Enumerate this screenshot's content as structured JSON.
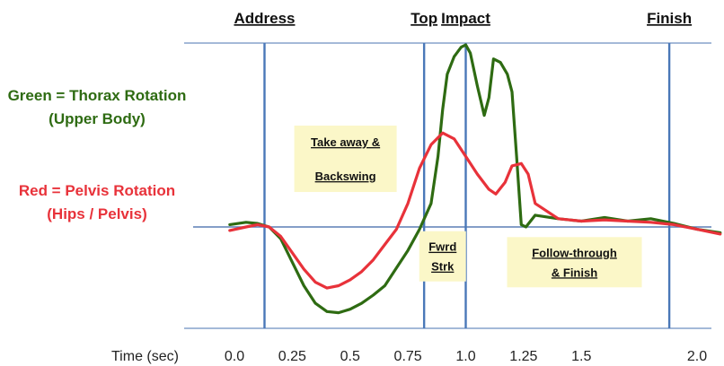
{
  "chart_data": {
    "type": "line",
    "xlabel": "Time (sec)",
    "xlim": [
      -0.1,
      2.1
    ],
    "ylim": [
      -1.0,
      1.6
    ],
    "x_ticks": [
      "0.0",
      "0.25",
      "0.5",
      "0.75",
      "1.0",
      "1.25",
      "1.5",
      "2.0"
    ],
    "x_tick_values": [
      0.0,
      0.25,
      0.5,
      0.75,
      1.0,
      1.25,
      1.5,
      2.0
    ],
    "phases": [
      {
        "label": "Address",
        "x": 0.13
      },
      {
        "label": "Top",
        "x": 0.82
      },
      {
        "label": "Impact",
        "x": 1.0
      },
      {
        "label": "Finish",
        "x": 1.88
      }
    ],
    "annotations": [
      {
        "lines": [
          "Take away &",
          "Backswing"
        ],
        "x": 0.48,
        "y": 0.58
      },
      {
        "lines": [
          "Fwrd",
          "Strk"
        ],
        "x": 0.9,
        "y": -0.25
      },
      {
        "lines": [
          "Follow-through",
          "& Finish"
        ],
        "x": 1.47,
        "y": -0.3
      }
    ],
    "legend": [
      {
        "lines": [
          "Green = Thorax Rotation",
          "(Upper Body)"
        ],
        "color": "#2e6b12"
      },
      {
        "lines": [
          "Red = Pelvis Rotation",
          "(Hips / Pelvis)"
        ],
        "color": "#e8323a"
      }
    ],
    "series": [
      {
        "color": "#2e6b12",
        "x": [
          -0.02,
          0.05,
          0.1,
          0.15,
          0.2,
          0.25,
          0.3,
          0.35,
          0.4,
          0.45,
          0.5,
          0.55,
          0.6,
          0.65,
          0.7,
          0.75,
          0.8,
          0.85,
          0.88,
          0.9,
          0.92,
          0.95,
          0.98,
          1.0,
          1.02,
          1.05,
          1.08,
          1.1,
          1.12,
          1.15,
          1.18,
          1.2,
          1.22,
          1.24,
          1.26,
          1.3,
          1.4,
          1.5,
          1.6,
          1.7,
          1.8,
          1.9,
          2.0,
          2.1
        ],
        "values": [
          0.02,
          0.04,
          0.03,
          0.0,
          -0.1,
          -0.3,
          -0.5,
          -0.65,
          -0.72,
          -0.73,
          -0.7,
          -0.65,
          -0.58,
          -0.5,
          -0.35,
          -0.2,
          -0.02,
          0.2,
          0.6,
          1.0,
          1.3,
          1.45,
          1.53,
          1.55,
          1.48,
          1.2,
          0.95,
          1.1,
          1.43,
          1.4,
          1.3,
          1.15,
          0.6,
          0.02,
          0.0,
          0.1,
          0.07,
          0.05,
          0.08,
          0.05,
          0.07,
          0.03,
          -0.02,
          -0.05
        ]
      },
      {
        "color": "#e8323a",
        "x": [
          -0.02,
          0.05,
          0.1,
          0.15,
          0.2,
          0.25,
          0.3,
          0.35,
          0.4,
          0.45,
          0.5,
          0.55,
          0.6,
          0.65,
          0.7,
          0.75,
          0.8,
          0.85,
          0.9,
          0.95,
          1.0,
          1.05,
          1.1,
          1.13,
          1.17,
          1.2,
          1.24,
          1.27,
          1.3,
          1.4,
          1.5,
          1.6,
          1.7,
          1.8,
          1.9,
          2.0,
          2.1
        ],
        "values": [
          -0.03,
          0.0,
          0.02,
          0.0,
          -0.08,
          -0.22,
          -0.36,
          -0.47,
          -0.52,
          -0.5,
          -0.45,
          -0.38,
          -0.28,
          -0.15,
          -0.02,
          0.2,
          0.5,
          0.7,
          0.8,
          0.75,
          0.6,
          0.45,
          0.32,
          0.28,
          0.38,
          0.52,
          0.54,
          0.45,
          0.2,
          0.07,
          0.05,
          0.06,
          0.05,
          0.04,
          0.02,
          -0.02,
          -0.06
        ]
      }
    ]
  }
}
